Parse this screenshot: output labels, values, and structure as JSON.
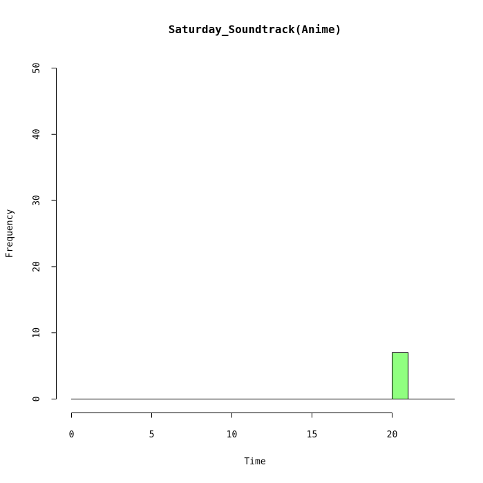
{
  "chart_data": {
    "type": "bar",
    "title": "Saturday_Soundtrack(Anime)",
    "xlabel": "Time",
    "ylabel": "Frequency",
    "xlim": [
      0,
      24
    ],
    "ylim": [
      0,
      50
    ],
    "x_ticks": [
      0,
      5,
      10,
      15,
      20
    ],
    "y_ticks": [
      0,
      10,
      20,
      30,
      40,
      50
    ],
    "bins": [
      {
        "start": 20,
        "end": 21,
        "value": 7
      }
    ],
    "bar_color": "#90FF80",
    "bar_edge_color": "#000000",
    "grid": false
  }
}
